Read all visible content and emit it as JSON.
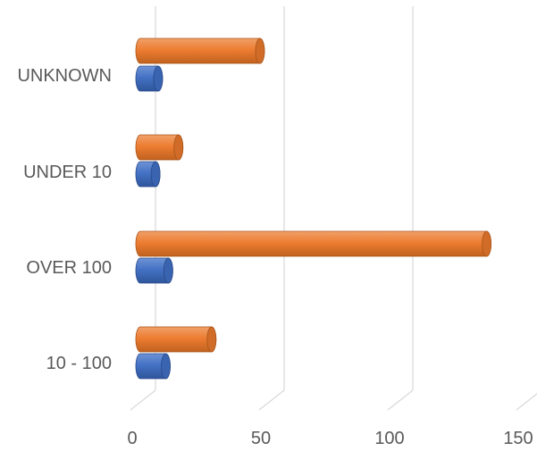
{
  "chart_data": {
    "type": "bar",
    "orientation": "horizontal",
    "style": "3d-cylinder",
    "categories": [
      "UNKNOWN",
      "UNDER 10",
      "OVER 100",
      "10 - 100"
    ],
    "series": [
      {
        "color": "#ED7D31",
        "values": [
          47,
          15,
          136,
          28
        ]
      },
      {
        "color": "#4472C4",
        "values": [
          7,
          6,
          11,
          10
        ]
      }
    ],
    "x_ticks": [
      "0",
      "50",
      "100",
      "150"
    ],
    "xlim": [
      0,
      150
    ],
    "grid": true,
    "legend": "none"
  }
}
